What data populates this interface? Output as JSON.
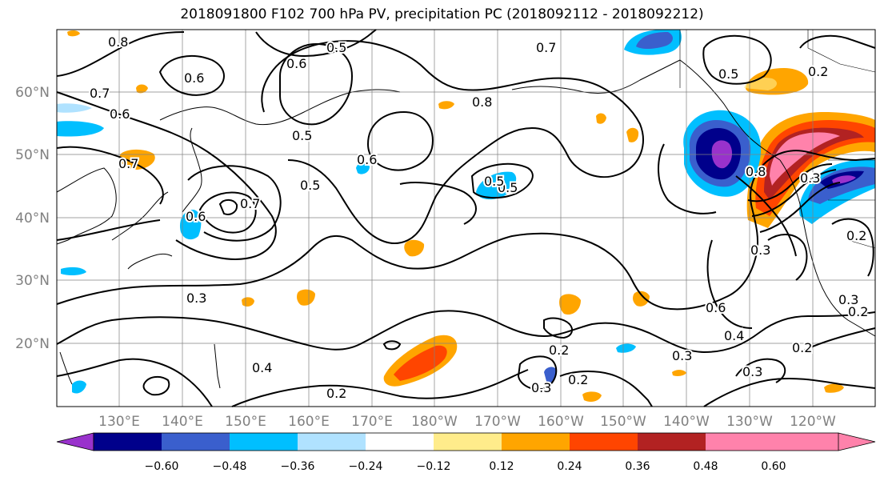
{
  "title": "2018091800 F102 700 hPa PV, precipitation PC (2018092112 - 2018092212)",
  "map": {
    "lat_labels": [
      "60°N",
      "50°N",
      "40°N",
      "30°N",
      "20°N"
    ],
    "lon_labels": [
      "130°E",
      "140°E",
      "150°E",
      "160°E",
      "170°E",
      "180°W",
      "170°W",
      "160°W",
      "150°W",
      "140°W",
      "130°W",
      "120°W"
    ],
    "contour_labels": [
      "0.8",
      "0.7",
      "0.6",
      "0.6",
      "0.7",
      "0.6",
      "0.5",
      "0.7",
      "0.5",
      "0.7",
      "0.6",
      "0.8",
      "0.5",
      "0.3",
      "0.4",
      "0.2",
      "0.3",
      "0.6",
      "0.5",
      "0.8",
      "0.3",
      "0.3",
      "0.5",
      "0.2",
      "0.6",
      "0.4",
      "0.3",
      "0.2",
      "0.2",
      "0.2",
      "0.3",
      "0.3",
      "0.2",
      "0.5",
      "0.2"
    ]
  },
  "colorbar": {
    "ticks": [
      "−0.60",
      "−0.48",
      "−0.36",
      "−0.24",
      "−0.12",
      "0.12",
      "0.24",
      "0.36",
      "0.48",
      "0.60"
    ],
    "colors": [
      "#9932CC",
      "#00008B",
      "#3A5FCD",
      "#00BFFF",
      "#B0E2FF",
      "#FFFFFF",
      "#FFEC8B",
      "#FFA500",
      "#FF4500",
      "#B22222",
      "#FF82AB"
    ]
  }
}
